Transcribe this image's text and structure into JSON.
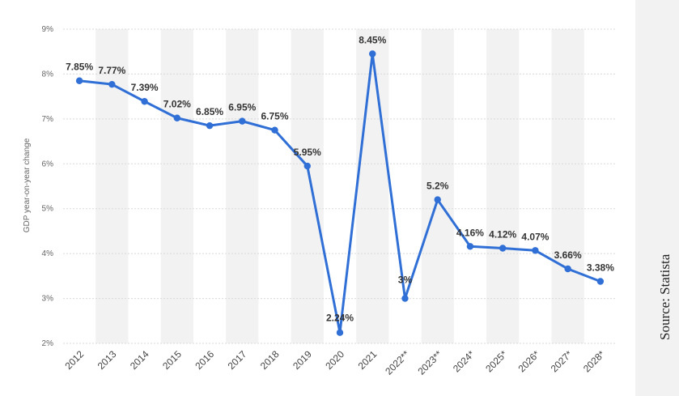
{
  "chart_data": {
    "type": "line",
    "title": "",
    "xlabel": "",
    "ylabel": "GDP year-on-year change",
    "categories": [
      "2012",
      "2013",
      "2014",
      "2015",
      "2016",
      "2017",
      "2018",
      "2019",
      "2020",
      "2021",
      "2022**",
      "2023**",
      "2024*",
      "2025*",
      "2026*",
      "2027*",
      "2028*"
    ],
    "values": [
      7.85,
      7.77,
      7.39,
      7.02,
      6.85,
      6.95,
      6.75,
      5.95,
      2.24,
      8.45,
      3.0,
      5.2,
      4.16,
      4.12,
      4.07,
      3.66,
      3.38
    ],
    "data_labels": [
      "7.85%",
      "7.77%",
      "7.39%",
      "7.02%",
      "6.85%",
      "6.95%",
      "6.75%",
      "5.95%",
      "2.24%",
      "8.45%",
      "3%",
      "5.2%",
      "4.16%",
      "4.12%",
      "4.07%",
      "3.66%",
      "3.38%"
    ],
    "y_ticks": [
      2,
      3,
      4,
      5,
      6,
      7,
      8,
      9
    ],
    "y_tick_labels": [
      "2%",
      "3%",
      "4%",
      "5%",
      "6%",
      "7%",
      "8%",
      "9%"
    ],
    "ylim": [
      2,
      9
    ],
    "grid": true,
    "colors": {
      "line": "#2f6fd6",
      "band": "#f2f2f2"
    }
  },
  "source_text": "Source: Statista"
}
